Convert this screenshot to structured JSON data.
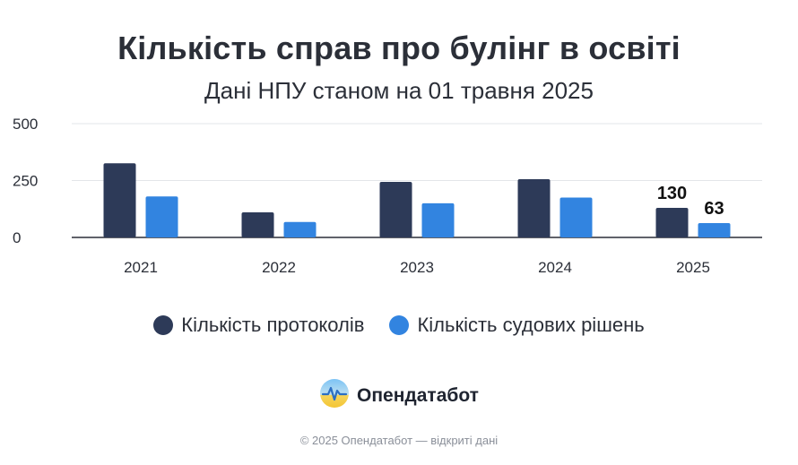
{
  "header": {
    "title": "Кількість справ про булінг в освіті",
    "subtitle": "Дані НПУ станом на 01 травня 2025"
  },
  "legend": {
    "items": [
      {
        "label": "Кількість протоколів",
        "color": "#2d3a58"
      },
      {
        "label": "Кількість судових рішень",
        "color": "#3284e0"
      }
    ]
  },
  "brand": {
    "name": "Опендатабот",
    "logo_icon": "opendatabot-logo-icon"
  },
  "footer": {
    "text": "© 2025 Опендатабот — відкриті дані"
  },
  "chart_data": {
    "type": "bar",
    "title": "Кількість справ про булінг в освіті",
    "subtitle": "Дані НПУ станом на 01 травня 2025",
    "categories": [
      "2021",
      "2022",
      "2023",
      "2024",
      "2025"
    ],
    "series": [
      {
        "name": "Кількість протоколів",
        "color": "#2d3a58",
        "values": [
          326,
          110,
          244,
          256,
          130
        ]
      },
      {
        "name": "Кількість судових рішень",
        "color": "#3284e0",
        "values": [
          180,
          68,
          150,
          175,
          63
        ]
      }
    ],
    "data_labels": [
      {
        "category": "2025",
        "series": "Кількість протоколів",
        "text": "130"
      },
      {
        "category": "2025",
        "series": "Кількість судових рішень",
        "text": "63"
      }
    ],
    "yticks": [
      "0",
      "250",
      "500"
    ],
    "ylim": [
      0,
      500
    ],
    "grid": true,
    "legend_position": "bottom"
  }
}
